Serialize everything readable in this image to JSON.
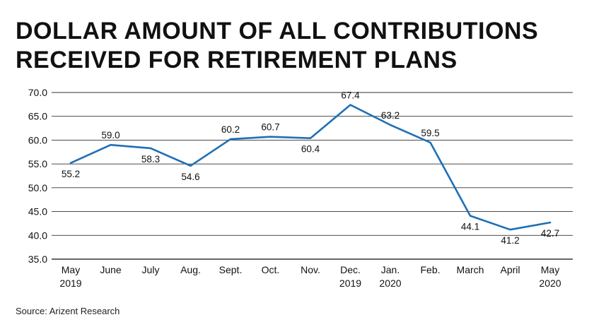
{
  "title": "DOLLAR AMOUNT OF ALL CONTRIBUTIONS RECEIVED FOR RETIREMENT PLANS",
  "source": "Source: Arizent Research",
  "chart_data": {
    "type": "line",
    "title": "DOLLAR AMOUNT OF ALL CONTRIBUTIONS RECEIVED FOR RETIREMENT PLANS",
    "xlabel": "",
    "ylabel": "",
    "categories": [
      [
        "May",
        "2019"
      ],
      [
        "June"
      ],
      [
        "July"
      ],
      [
        "Aug."
      ],
      [
        "Sept."
      ],
      [
        "Oct."
      ],
      [
        "Nov."
      ],
      [
        "Dec.",
        "2019"
      ],
      [
        "Jan.",
        "2020"
      ],
      [
        "Feb."
      ],
      [
        "March"
      ],
      [
        "April"
      ],
      [
        "May",
        "2020"
      ]
    ],
    "series": [
      {
        "values": [
          55.2,
          59.0,
          58.3,
          54.6,
          60.2,
          60.7,
          60.4,
          67.4,
          63.2,
          59.5,
          44.1,
          41.2,
          42.7
        ]
      }
    ],
    "data_labels": [
      "55.2",
      "59.0",
      "58.3",
      "54.6",
      "60.2",
      "60.7",
      "60.4",
      "67.4",
      "63.2",
      "59.5",
      "44.1",
      "41.2",
      "42.7"
    ],
    "label_side": [
      "below",
      "above",
      "below",
      "below",
      "above",
      "above",
      "below",
      "above",
      "above",
      "above",
      "below",
      "below",
      "below"
    ],
    "ylim": [
      35,
      70
    ],
    "yticks": [
      35,
      40,
      45,
      50,
      55,
      60,
      65,
      70
    ],
    "ytick_labels": [
      "35.0",
      "40.0",
      "45.0",
      "50.0",
      "55.0",
      "60.0",
      "65.0",
      "70.0"
    ],
    "grid": true,
    "line_color": "#1f6fb5",
    "grid_color": "#333333"
  }
}
